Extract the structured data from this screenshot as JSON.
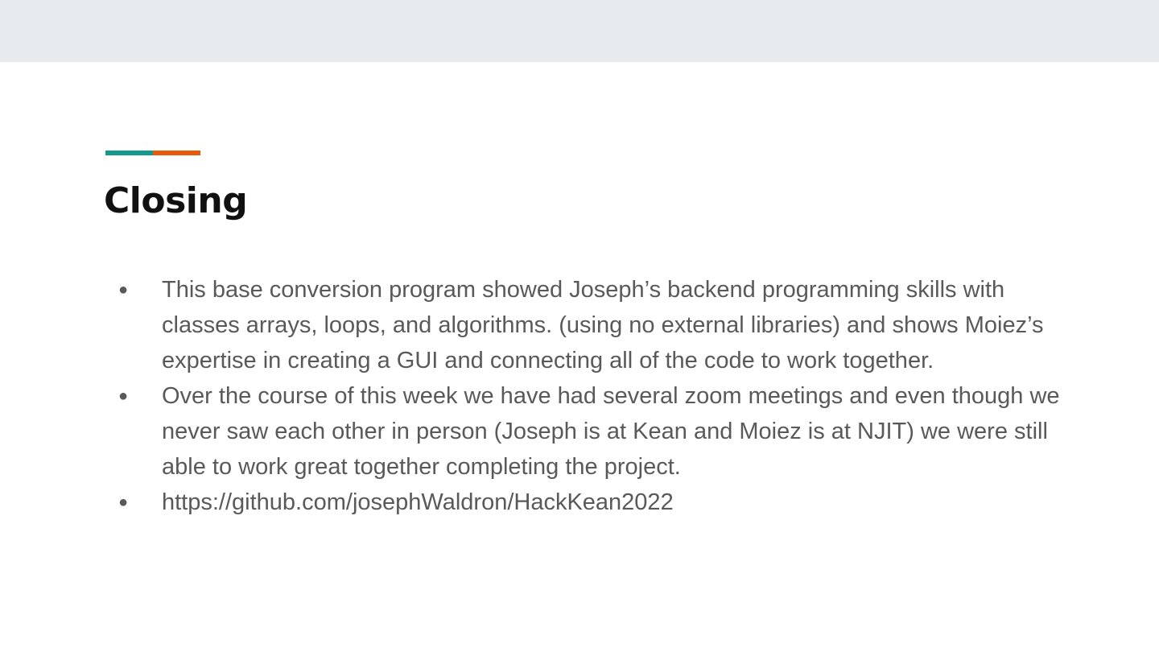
{
  "slide": {
    "title": "Closing",
    "accent_colors": [
      "#15998e",
      "#e8590c"
    ],
    "bullet_glyph": "●",
    "bullets": [
      "This base conversion program showed Joseph’s backend programming skills with classes arrays, loops, and algorithms.  (using no external libraries) and shows Moiez’s expertise in creating a GUI and connecting all of the code to work together.",
      "Over the course of this week we have had several zoom meetings and even though we never saw each other in person (Joseph is at Kean and Moiez is at NJIT) we were still able to work great together completing the project.",
      "https://github.com/josephWaldron/HackKean2022"
    ]
  }
}
